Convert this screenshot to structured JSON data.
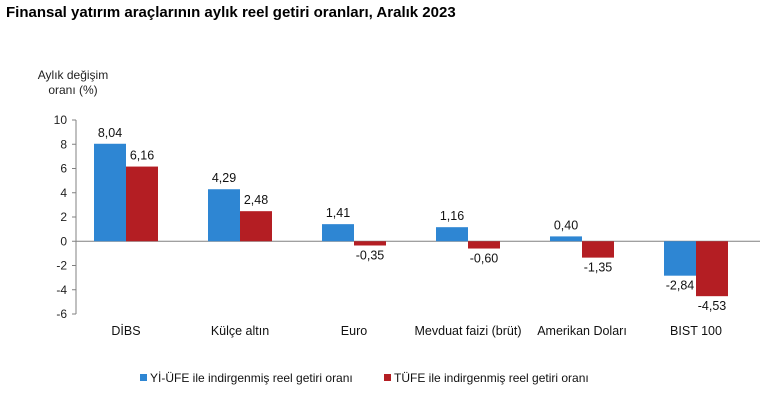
{
  "chart_data": {
    "type": "bar",
    "title": "Finansal yatırım araçlarının aylık reel getiri oranları, Aralık 2023",
    "ylabel_lines": [
      "Aylık değişim",
      "oranı (%)"
    ],
    "xlabel": "",
    "ylim": [
      -6,
      10
    ],
    "yticks": [
      10,
      8,
      6,
      4,
      2,
      0,
      -2,
      -4,
      -6
    ],
    "grid": false,
    "legend_position": "bottom",
    "categories": [
      "DİBS",
      "Külçe altın",
      "Euro",
      "Mevduat faizi (brüt)",
      "Amerikan Doları",
      "BIST 100"
    ],
    "series": [
      {
        "name": "Yİ-ÜFE ile indirgenmiş reel getiri oranı",
        "color": "#2e86d3",
        "values": [
          8.04,
          4.29,
          1.41,
          1.16,
          0.4,
          -2.84
        ],
        "labels": [
          "8,04",
          "4,29",
          "1,41",
          "1,16",
          "0,40",
          "-2,84"
        ]
      },
      {
        "name": "TÜFE ile indirgenmiş reel getiri oranı",
        "color": "#b41e23",
        "values": [
          6.16,
          2.48,
          -0.35,
          -0.6,
          -1.35,
          -4.53
        ],
        "labels": [
          "6,16",
          "2,48",
          "-0,35",
          "-0,60",
          "-1,35",
          "-4,53"
        ]
      }
    ]
  }
}
